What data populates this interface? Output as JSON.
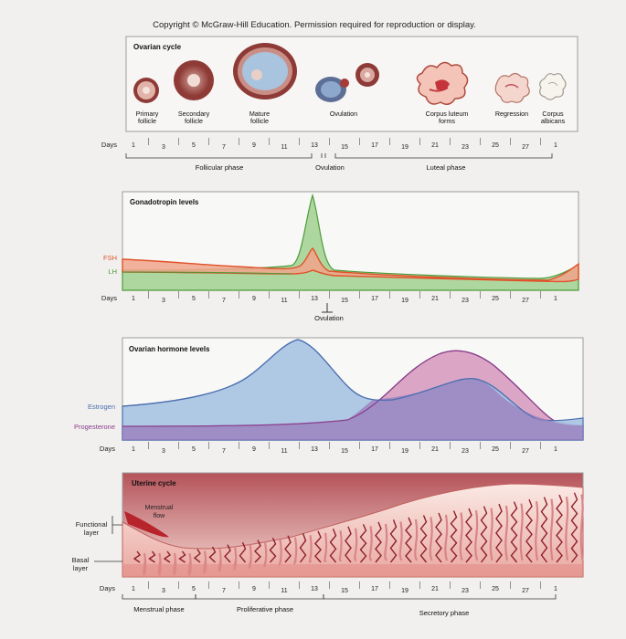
{
  "copyright": "Copyright © McGraw-Hill Education. Permission required for reproduction or display.",
  "days_label": "Days",
  "day_numbers": [
    "1",
    "3",
    "5",
    "7",
    "9",
    "11",
    "13",
    "15",
    "17",
    "19",
    "21",
    "23",
    "25",
    "27",
    "1"
  ],
  "ovarian": {
    "title": "Ovarian cycle",
    "stages": [
      {
        "line1": "Primary",
        "line2": "follicle"
      },
      {
        "line1": "Secondary",
        "line2": "follicle"
      },
      {
        "line1": "Mature",
        "line2": "follicle"
      },
      {
        "line1": "Ovulation",
        "line2": ""
      },
      {
        "line1": "Corpus luteum",
        "line2": "forms"
      },
      {
        "line1": "Regression",
        "line2": ""
      },
      {
        "line1": "Corpus",
        "line2": "albicans"
      }
    ],
    "phases": {
      "follicular": "Follicular phase",
      "ovulation": "Ovulation",
      "luteal": "Luteal phase"
    }
  },
  "gonadotropin": {
    "title": "Gonadotropin levels",
    "fsh_label": "FSH",
    "lh_label": "LH",
    "ovulation_label": "Ovulation",
    "fsh_color": "#e0522a",
    "lh_color": "#4c9a3a"
  },
  "hormones": {
    "title": "Ovarian hormone levels",
    "estrogen_label": "Estrogen",
    "progesterone_label": "Progesterone",
    "estrogen_color": "#4a6fb0",
    "progesterone_color": "#8a3d8c"
  },
  "uterine": {
    "title": "Uterine cycle",
    "menstrual_flow": {
      "line1": "Menstrual",
      "line2": "flow"
    },
    "functional_label": {
      "line1": "Functional",
      "line2": "layer"
    },
    "basal_label": {
      "line1": "Basal",
      "line2": "layer"
    },
    "phases": {
      "menstrual": "Menstrual phase",
      "proliferative": "Proliferative phase",
      "secretory": "Secretory phase"
    }
  }
}
